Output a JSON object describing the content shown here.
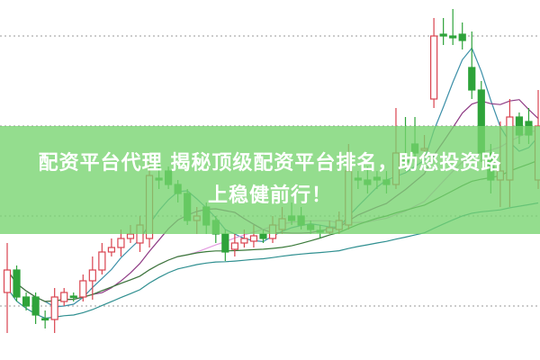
{
  "banner": {
    "line1": "配资平台代理 揭秘顶级配资平台排名，助您投资路",
    "line2": "上稳健前行！"
  },
  "chart_data": {
    "type": "candlestick",
    "ylim": [
      0,
      40
    ],
    "grid": true,
    "gridlines": [
      6,
      16,
      26,
      36
    ],
    "colors": {
      "up": "#d9434f",
      "down": "#2ea33a",
      "ma5": "#3b8fa8",
      "ma10": "#8e3a84",
      "ma20": "#e39be0",
      "ma30": "#3a7a3a",
      "ma60": "#2f8f90",
      "grid": "#999999"
    },
    "moving_averages": [
      5,
      10,
      20,
      30,
      60
    ],
    "candles": [
      [
        7.5,
        13,
        3,
        10.0
      ],
      [
        10.0,
        10.5,
        6.5,
        7.0
      ],
      [
        7,
        7.5,
        5.5,
        6.0
      ],
      [
        7,
        7.5,
        4,
        5.0
      ],
      [
        4.6,
        5.5,
        3.5,
        4.5
      ],
      [
        4.5,
        8,
        3,
        7.0
      ],
      [
        6.5,
        8,
        6,
        7.5
      ],
      [
        7.1,
        7.5,
        6.5,
        7.0
      ],
      [
        7,
        9.5,
        6.5,
        8.8
      ],
      [
        8.8,
        11.5,
        6.7,
        10.0
      ],
      [
        10,
        13,
        9.5,
        12.0
      ],
      [
        12,
        13.5,
        11.5,
        12.5
      ],
      [
        12.5,
        14.5,
        11.5,
        13.5
      ],
      [
        13.5,
        15,
        13,
        14.0
      ],
      [
        13,
        16,
        12,
        15.0
      ],
      [
        13.5,
        22,
        12.5,
        20.5
      ],
      [
        20.2,
        22,
        19,
        20.0
      ],
      [
        21,
        21.5,
        19,
        19.5
      ],
      [
        19.5,
        20,
        17.5,
        18.5
      ],
      [
        18.5,
        19,
        15,
        15.5
      ],
      [
        15.5,
        17,
        14,
        16.0
      ],
      [
        17,
        17.5,
        14,
        15.0
      ],
      [
        15.5,
        16,
        13,
        14.0
      ],
      [
        14,
        14.5,
        11,
        12.0
      ],
      [
        12.3,
        14,
        11.5,
        13.0
      ],
      [
        13,
        14.5,
        12.5,
        13.5
      ],
      [
        13.2,
        15,
        12.5,
        13.8
      ],
      [
        14,
        14.5,
        13,
        13.5
      ],
      [
        13.5,
        16,
        13,
        15.0
      ],
      [
        14.5,
        17,
        14,
        15.7
      ],
      [
        16,
        17.5,
        15,
        15.5
      ],
      [
        16,
        17,
        14.5,
        15.0
      ],
      [
        15,
        15.5,
        14,
        14.5
      ],
      [
        14.4,
        15,
        13.5,
        14.2
      ],
      [
        14.2,
        15.5,
        14,
        14.7
      ],
      [
        14.5,
        16.5,
        14,
        15.5
      ],
      [
        15,
        24,
        14.5,
        21.0
      ],
      [
        20.2,
        21,
        19,
        20.0
      ],
      [
        20,
        21.5,
        18.5,
        19.5
      ],
      [
        20.3,
        21,
        19,
        20.0
      ],
      [
        20,
        21,
        18.5,
        19.5
      ],
      [
        19.5,
        28,
        19,
        23.0
      ],
      [
        22.2,
        27,
        21,
        22.0
      ],
      [
        24,
        27,
        22,
        23.0
      ],
      [
        23.3,
        25,
        22.5,
        23.5
      ],
      [
        29,
        38,
        28,
        36.0
      ],
      [
        36.2,
        38,
        35,
        36.0
      ],
      [
        36,
        39,
        35,
        35.8
      ],
      [
        36.2,
        37.5,
        34.5,
        35.5
      ],
      [
        32.5,
        36.5,
        29,
        30.0
      ],
      [
        30,
        31,
        22,
        23.0
      ],
      [
        23,
        24,
        18.5,
        20.0
      ],
      [
        20,
        26.5,
        17,
        21.0
      ],
      [
        20,
        29,
        17,
        27.0
      ],
      [
        27,
        27.5,
        24,
        25.0
      ],
      [
        26.5,
        28,
        24,
        25.0
      ],
      [
        20,
        30,
        19,
        26.0
      ]
    ]
  }
}
